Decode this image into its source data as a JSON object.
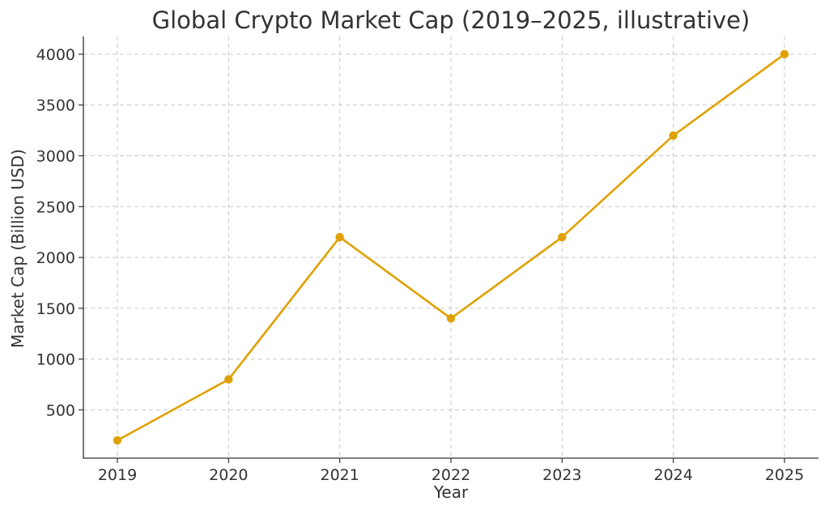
{
  "chart_data": {
    "type": "line",
    "title": "Global Crypto Market Cap (2019–2025, illustrative)",
    "xlabel": "Year",
    "ylabel": "Market Cap (Billion USD)",
    "categories": [
      "2019",
      "2020",
      "2021",
      "2022",
      "2023",
      "2024",
      "2025"
    ],
    "series": [
      {
        "values": [
          200,
          800,
          2200,
          1400,
          2200,
          3200,
          4000
        ],
        "color": "#e0a100"
      }
    ],
    "yticks": [
      500,
      1000,
      1500,
      2000,
      2500,
      3000,
      3500,
      4000
    ],
    "ylim": [
      25,
      4175
    ],
    "grid": true,
    "grid_style": "dashed",
    "legend": "none",
    "marker": "circle"
  }
}
